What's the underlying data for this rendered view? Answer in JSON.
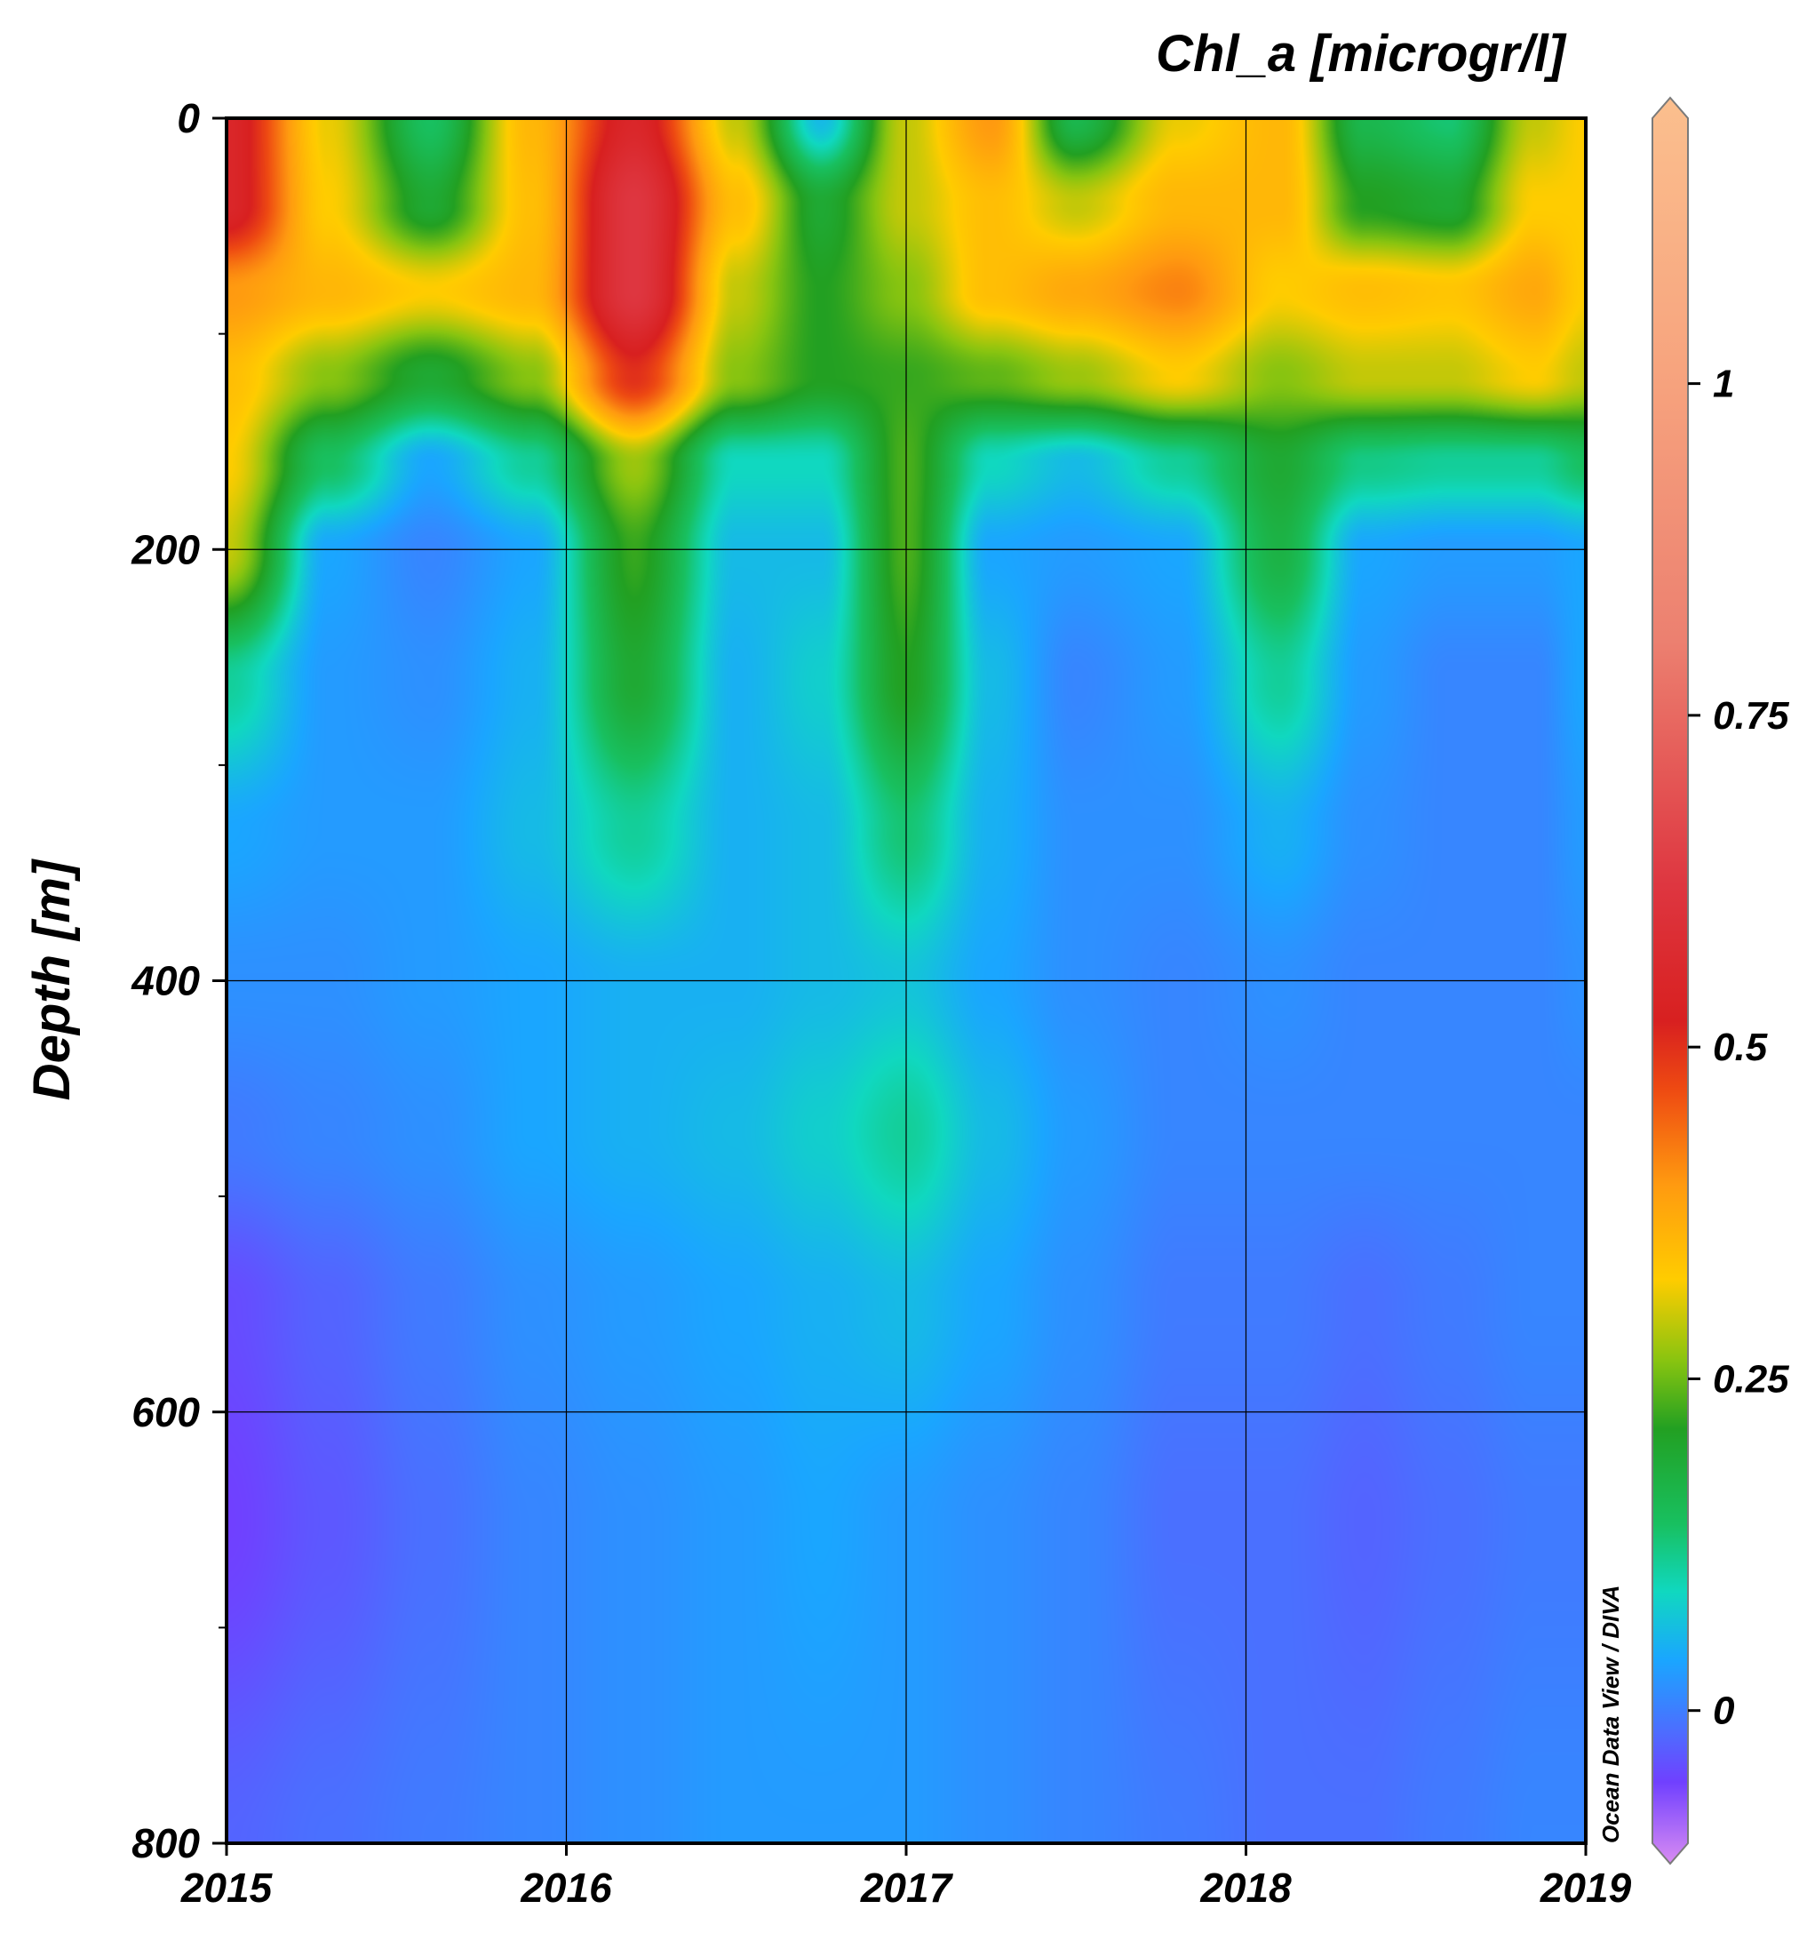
{
  "chart_data": {
    "type": "heatmap",
    "title": "Chl_a [microgr/l]",
    "xlabel": "",
    "ylabel": "Depth [m]",
    "watermark": "Ocean Data View / DIVA",
    "x_ticks": [
      "2015",
      "2016",
      "2017",
      "2018",
      "2019"
    ],
    "y_ticks": [
      "0",
      "200",
      "400",
      "600",
      "800"
    ],
    "colorbar_ticks": [
      "0",
      "0.25",
      "0.5",
      "0.75",
      "1"
    ],
    "xlim": [
      2015,
      2019
    ],
    "ylim": [
      0,
      800
    ],
    "y_inverted": true,
    "colorbar_range": [
      -0.1,
      1.2
    ],
    "grid": true,
    "colormap": [
      {
        "v": -0.1,
        "color": "#d98cf2"
      },
      {
        "v": -0.04,
        "color": "#7040ff"
      },
      {
        "v": 0.0,
        "color": "#4a70ff"
      },
      {
        "v": 0.05,
        "color": "#1aa6ff"
      },
      {
        "v": 0.1,
        "color": "#10d8c0"
      },
      {
        "v": 0.15,
        "color": "#18c060"
      },
      {
        "v": 0.22,
        "color": "#22a022"
      },
      {
        "v": 0.27,
        "color": "#88c410"
      },
      {
        "v": 0.33,
        "color": "#ffcc00"
      },
      {
        "v": 0.4,
        "color": "#ff9a10"
      },
      {
        "v": 0.47,
        "color": "#ee4a12"
      },
      {
        "v": 0.52,
        "color": "#d82020"
      },
      {
        "v": 0.62,
        "color": "#de3640"
      },
      {
        "v": 0.8,
        "color": "#ec8070"
      },
      {
        "v": 1.0,
        "color": "#f7a47e"
      },
      {
        "v": 1.2,
        "color": "#fbbf8e"
      }
    ],
    "depths": [
      0,
      40,
      80,
      120,
      160,
      200,
      260,
      330,
      400,
      470,
      550,
      650,
      800
    ],
    "times": [
      2015.0,
      2015.3,
      2015.6,
      2015.9,
      2016.2,
      2016.5,
      2016.75,
      2017.0,
      2017.25,
      2017.5,
      2017.8,
      2018.1,
      2018.35,
      2018.6,
      2018.85,
      2019.0
    ],
    "values": [
      [
        0.55,
        0.32,
        0.15,
        0.36,
        0.55,
        0.3,
        0.07,
        0.3,
        0.4,
        0.17,
        0.32,
        0.36,
        0.17,
        0.14,
        0.3,
        0.33
      ],
      [
        0.55,
        0.33,
        0.2,
        0.35,
        0.62,
        0.35,
        0.2,
        0.3,
        0.35,
        0.3,
        0.36,
        0.36,
        0.22,
        0.2,
        0.33,
        0.33
      ],
      [
        0.4,
        0.36,
        0.33,
        0.36,
        0.62,
        0.3,
        0.22,
        0.27,
        0.35,
        0.38,
        0.42,
        0.33,
        0.35,
        0.34,
        0.38,
        0.33
      ],
      [
        0.35,
        0.27,
        0.2,
        0.27,
        0.5,
        0.27,
        0.22,
        0.23,
        0.25,
        0.28,
        0.33,
        0.27,
        0.3,
        0.3,
        0.33,
        0.3
      ],
      [
        0.33,
        0.15,
        0.05,
        0.12,
        0.28,
        0.1,
        0.1,
        0.24,
        0.1,
        0.07,
        0.12,
        0.2,
        0.13,
        0.12,
        0.12,
        0.15
      ],
      [
        0.3,
        0.05,
        0.02,
        0.05,
        0.23,
        0.07,
        0.07,
        0.24,
        0.05,
        0.04,
        0.05,
        0.18,
        0.05,
        0.04,
        0.04,
        0.05
      ],
      [
        0.12,
        0.04,
        0.03,
        0.06,
        0.2,
        0.06,
        0.09,
        0.22,
        0.07,
        0.02,
        0.04,
        0.12,
        0.04,
        0.02,
        0.02,
        0.05
      ],
      [
        0.05,
        0.04,
        0.04,
        0.07,
        0.12,
        0.06,
        0.07,
        0.14,
        0.06,
        0.03,
        0.03,
        0.06,
        0.03,
        0.02,
        0.02,
        0.04
      ],
      [
        0.03,
        0.03,
        0.04,
        0.05,
        0.06,
        0.06,
        0.07,
        0.08,
        0.05,
        0.03,
        0.02,
        0.03,
        0.02,
        0.02,
        0.02,
        0.03
      ],
      [
        0.01,
        0.02,
        0.03,
        0.05,
        0.06,
        0.07,
        0.09,
        0.12,
        0.07,
        0.04,
        0.02,
        0.02,
        0.02,
        0.02,
        0.02,
        0.02
      ],
      [
        -0.03,
        -0.01,
        0.01,
        0.03,
        0.04,
        0.05,
        0.06,
        0.07,
        0.05,
        0.03,
        0.01,
        0.01,
        0.0,
        0.01,
        0.02,
        0.02
      ],
      [
        -0.04,
        -0.02,
        0.0,
        0.02,
        0.03,
        0.04,
        0.05,
        0.04,
        0.03,
        0.02,
        0.0,
        0.0,
        -0.01,
        0.0,
        0.01,
        0.01
      ],
      [
        -0.01,
        0.0,
        0.01,
        0.02,
        0.03,
        0.04,
        0.04,
        0.04,
        0.03,
        0.02,
        0.01,
        0.0,
        0.0,
        0.01,
        0.02,
        0.02
      ]
    ]
  }
}
